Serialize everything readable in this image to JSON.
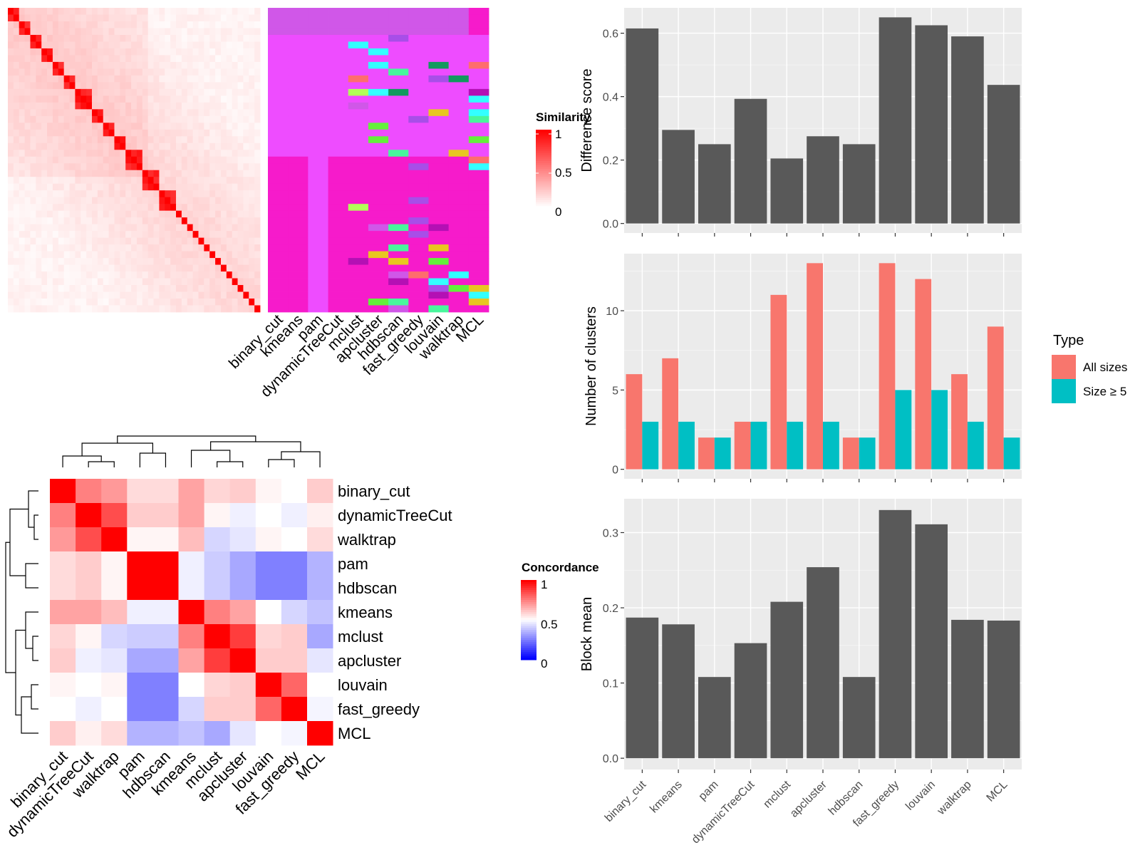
{
  "chart_data": [
    {
      "type": "heatmap",
      "name": "similarity-heatmap-with-cluster-annotations",
      "legend_title": "Similarity",
      "legend_ticks": [
        "1",
        "0.5",
        "0"
      ],
      "column_labels": [
        "binary_cut",
        "kmeans",
        "pam",
        "dynamicTreeCut",
        "mclust",
        "apcluster",
        "hdbscan",
        "fast_greedy",
        "louvain",
        "walktrap",
        "MCL"
      ],
      "grid": false
    },
    {
      "type": "heatmap",
      "name": "concordance-heatmap",
      "legend_title": "Concordance",
      "legend_ticks": [
        "1",
        "0.5",
        "0"
      ],
      "row_labels": [
        "binary_cut",
        "dynamicTreeCut",
        "walktrap",
        "pam",
        "hdbscan",
        "kmeans",
        "mclust",
        "apcluster",
        "louvain",
        "fast_greedy",
        "MCL"
      ],
      "column_labels": [
        "binary_cut",
        "dynamicTreeCut",
        "walktrap",
        "pam",
        "hdbscan",
        "kmeans",
        "mclust",
        "apcluster",
        "louvain",
        "fast_greedy",
        "MCL"
      ],
      "values": [
        [
          1.0,
          0.75,
          0.7,
          0.57,
          0.57,
          0.68,
          0.58,
          0.6,
          0.52,
          0.5,
          0.6
        ],
        [
          0.75,
          1.0,
          0.85,
          0.6,
          0.6,
          0.68,
          0.52,
          0.47,
          0.5,
          0.47,
          0.53
        ],
        [
          0.7,
          0.85,
          1.0,
          0.52,
          0.52,
          0.63,
          0.42,
          0.45,
          0.52,
          0.5,
          0.57
        ],
        [
          0.57,
          0.6,
          0.52,
          1.0,
          1.0,
          0.47,
          0.4,
          0.33,
          0.25,
          0.25,
          0.35
        ],
        [
          0.57,
          0.6,
          0.52,
          1.0,
          1.0,
          0.47,
          0.4,
          0.33,
          0.25,
          0.25,
          0.35
        ],
        [
          0.68,
          0.68,
          0.63,
          0.47,
          0.47,
          1.0,
          0.75,
          0.68,
          0.5,
          0.42,
          0.38
        ],
        [
          0.58,
          0.52,
          0.42,
          0.4,
          0.4,
          0.75,
          1.0,
          0.88,
          0.58,
          0.6,
          0.33
        ],
        [
          0.6,
          0.47,
          0.45,
          0.33,
          0.33,
          0.68,
          0.88,
          1.0,
          0.6,
          0.6,
          0.45
        ],
        [
          0.52,
          0.5,
          0.52,
          0.25,
          0.25,
          0.5,
          0.58,
          0.6,
          1.0,
          0.8,
          0.5
        ],
        [
          0.5,
          0.47,
          0.5,
          0.25,
          0.25,
          0.42,
          0.6,
          0.6,
          0.8,
          1.0,
          0.48
        ],
        [
          0.6,
          0.53,
          0.57,
          0.35,
          0.35,
          0.38,
          0.33,
          0.45,
          0.5,
          0.48,
          1.0
        ]
      ],
      "grid": false
    },
    {
      "type": "bar",
      "name": "difference-score",
      "categories": [
        "binary_cut",
        "kmeans",
        "pam",
        "dynamicTreeCut",
        "mclust",
        "apcluster",
        "hdbscan",
        "fast_greedy",
        "louvain",
        "walktrap",
        "MCL"
      ],
      "values": [
        0.615,
        0.295,
        0.25,
        0.393,
        0.205,
        0.275,
        0.25,
        0.65,
        0.625,
        0.59,
        0.437
      ],
      "xlabel": "",
      "ylabel": "Difference score",
      "ylim": [
        -0.03,
        0.68
      ],
      "yticks": [
        "0.0",
        "0.2",
        "0.4",
        "0.6"
      ],
      "grid": true,
      "color": "#595959"
    },
    {
      "type": "bar",
      "name": "number-of-clusters",
      "categories": [
        "binary_cut",
        "kmeans",
        "pam",
        "dynamicTreeCut",
        "mclust",
        "apcluster",
        "hdbscan",
        "fast_greedy",
        "louvain",
        "walktrap",
        "MCL"
      ],
      "series": [
        {
          "name": "All sizes",
          "values": [
            6,
            7,
            2,
            3,
            11,
            13,
            2,
            13,
            12,
            6,
            9
          ],
          "color": "#F8766D"
        },
        {
          "name": "Size ≥ 5",
          "values": [
            3,
            3,
            2,
            3,
            3,
            3,
            2,
            5,
            5,
            3,
            2
          ],
          "color": "#00BFC4"
        }
      ],
      "xlabel": "",
      "ylabel": "Number of clusters",
      "ylim": [
        -0.6,
        13.6
      ],
      "yticks": [
        "0",
        "5",
        "10"
      ],
      "legend_title": "Type",
      "legend_position": "right",
      "grid": true
    },
    {
      "type": "bar",
      "name": "block-mean",
      "categories": [
        "binary_cut",
        "kmeans",
        "pam",
        "dynamicTreeCut",
        "mclust",
        "apcluster",
        "hdbscan",
        "fast_greedy",
        "louvain",
        "walktrap",
        "MCL"
      ],
      "values": [
        0.187,
        0.178,
        0.108,
        0.153,
        0.208,
        0.254,
        0.108,
        0.33,
        0.311,
        0.184,
        0.183
      ],
      "xlabel": "",
      "ylabel": "Block mean",
      "ylim": [
        -0.015,
        0.345
      ],
      "yticks": [
        "0.0",
        "0.1",
        "0.2",
        "0.3"
      ],
      "grid": true,
      "color": "#595959"
    }
  ]
}
